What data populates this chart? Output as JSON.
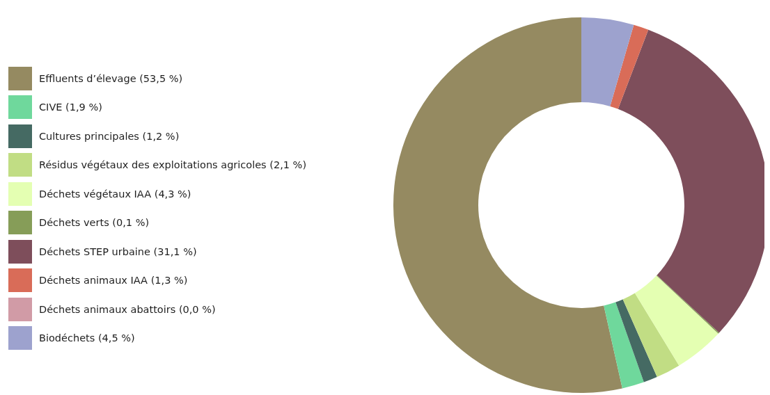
{
  "chart_data": {
    "type": "donut",
    "categories": [
      "Effluents d’élevage (53,5 %)",
      "CIVE (1,9 %)",
      "Cultures principales (1,2 %)",
      "Résidus végétaux des exploitations agricoles (2,1 %)",
      "Déchets végétaux IAA (4,3 %)",
      "Déchets verts (0,1 %)",
      "Déchets STEP urbaine (31,1 %)",
      "Déchets animaux IAA (1,3 %)",
      "Déchets animaux abattoirs (0,0 %)",
      "Biodéchets (4,5 %)"
    ],
    "values": [
      53.5,
      1.9,
      1.2,
      2.1,
      4.3,
      0.1,
      31.1,
      1.3,
      0.0,
      4.5
    ],
    "colors": [
      "#958a61",
      "#6fd89c",
      "#456a63",
      "#c1dd84",
      "#e4ffb2",
      "#869d58",
      "#7e4e5b",
      "#d96c58",
      "#d19ba6",
      "#9da2ce"
    ],
    "legend": "left"
  }
}
